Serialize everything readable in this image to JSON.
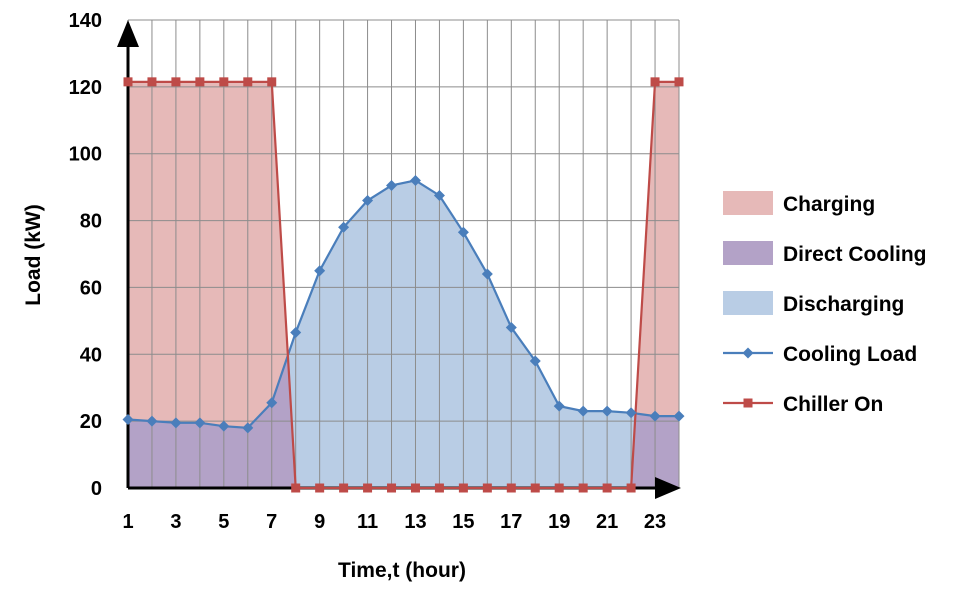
{
  "chart_data": {
    "type": "line",
    "xlabel": "Time,t (hour)",
    "ylabel": "Load (kW)",
    "xlim": [
      1,
      24
    ],
    "ylim": [
      0,
      140
    ],
    "x_ticks": [
      1,
      3,
      5,
      7,
      9,
      11,
      13,
      15,
      17,
      19,
      21,
      23
    ],
    "y_ticks": [
      0,
      20,
      40,
      60,
      80,
      100,
      120,
      140
    ],
    "grid": true,
    "legend_position": "right",
    "x": [
      1,
      2,
      3,
      4,
      5,
      6,
      7,
      8,
      9,
      10,
      11,
      12,
      13,
      14,
      15,
      16,
      17,
      18,
      19,
      20,
      21,
      22,
      23,
      24
    ],
    "series": [
      {
        "name": "Cooling Load",
        "kind": "line-diamond",
        "color": "#4a7ebb",
        "values": [
          20.5,
          20,
          19.5,
          19.5,
          18.5,
          18,
          25.5,
          46.5,
          65,
          78,
          86,
          90.5,
          92,
          87.5,
          76.5,
          64,
          48,
          38,
          24.5,
          23,
          23,
          22.5,
          21.5,
          21.5
        ]
      },
      {
        "name": "Chiller On",
        "kind": "line-square",
        "color": "#be4b48",
        "values": [
          121.5,
          121.5,
          121.5,
          121.5,
          121.5,
          121.5,
          121.5,
          0,
          0,
          0,
          0,
          0,
          0,
          0,
          0,
          0,
          0,
          0,
          0,
          0,
          0,
          0,
          121.5,
          121.5
        ]
      }
    ],
    "areas": [
      {
        "name": "Charging",
        "color": "#e6b9b8"
      },
      {
        "name": "Direct Cooling",
        "color": "#b3a2c7"
      },
      {
        "name": "Discharging",
        "color": "#b9cde5"
      }
    ]
  }
}
